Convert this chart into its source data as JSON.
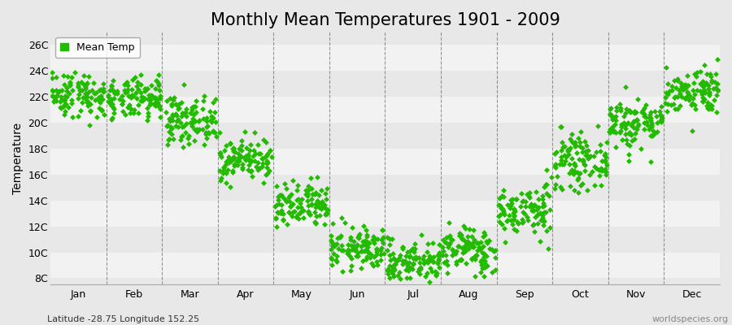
{
  "title": "Monthly Mean Temperatures 1901 - 2009",
  "ylabel": "Temperature",
  "subtitle": "Latitude -28.75 Longitude 152.25",
  "watermark": "worldspecies.org",
  "ylim": [
    7.5,
    27
  ],
  "yticks": [
    8,
    10,
    12,
    14,
    16,
    18,
    20,
    22,
    24,
    26
  ],
  "ytick_labels": [
    "8C",
    "10C",
    "12C",
    "14C",
    "16C",
    "18C",
    "20C",
    "22C",
    "24C",
    "26C"
  ],
  "months": [
    "Jan",
    "Feb",
    "Mar",
    "Apr",
    "May",
    "Jun",
    "Jul",
    "Aug",
    "Sep",
    "Oct",
    "Nov",
    "Dec"
  ],
  "monthly_mean": [
    22.2,
    21.8,
    20.2,
    17.2,
    13.5,
    10.3,
    9.3,
    10.2,
    13.2,
    17.0,
    20.0,
    22.5
  ],
  "monthly_std": [
    0.9,
    0.8,
    0.9,
    0.8,
    0.9,
    0.8,
    0.8,
    0.9,
    1.0,
    1.0,
    1.0,
    0.9
  ],
  "n_years": 109,
  "marker_color": "#22bb00",
  "marker_size": 3.5,
  "bg_color": "#e8e8e8",
  "stripe_light": "#f2f2f2",
  "grid_color": "#555555",
  "title_fontsize": 15,
  "axis_label_fontsize": 10,
  "tick_fontsize": 9,
  "legend_fontsize": 9,
  "seed": 42
}
